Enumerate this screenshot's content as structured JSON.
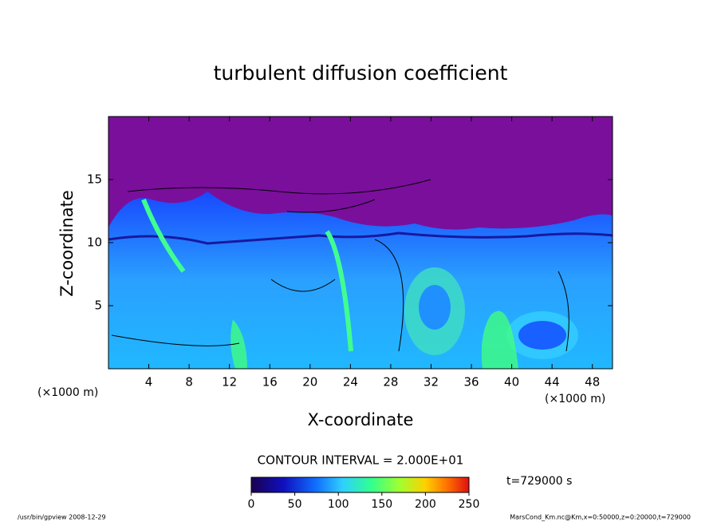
{
  "chart_data": {
    "type": "contour",
    "title": "turbulent diffusion coefficient",
    "xlabel": "X-coordinate",
    "ylabel": "Z-coordinate",
    "xunit": "(×1000 m)",
    "xlim": [
      0,
      50
    ],
    "xticks": [
      4,
      8,
      12,
      16,
      20,
      24,
      28,
      32,
      36,
      40,
      44,
      48
    ],
    "ylim": [
      0,
      20
    ],
    "yticks": [
      5,
      10,
      15
    ],
    "contour_interval": "CONTOUR INTERVAL = 2.000E+01",
    "time_label": "t=729000 s",
    "clim": [
      0,
      250
    ],
    "cticks": [
      0,
      50,
      100,
      150,
      200,
      250
    ],
    "footer_left": "/usr/bin/gpview  2008-12-29",
    "footer_right": "MarsCond_Km.nc@Km,x=0:50000,z=0:20000,t=729000"
  }
}
